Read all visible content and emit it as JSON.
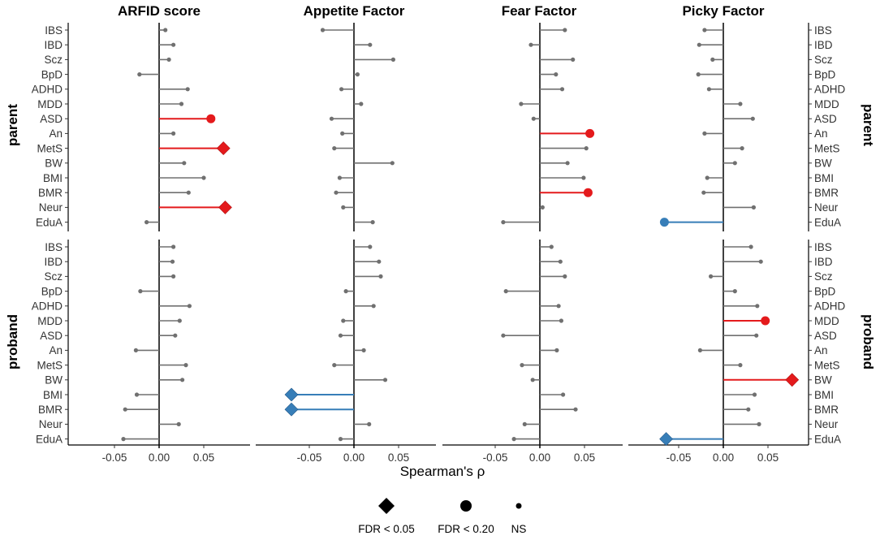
{
  "chart_data": {
    "type": "lollipop",
    "xlabel": "Spearman's ρ",
    "xlim": [
      -0.095,
      0.09
    ],
    "xticks": [
      -0.05,
      0.0,
      0.05
    ],
    "xtick_labels": [
      "-0.05",
      "0.00",
      "0.05"
    ],
    "facets": [
      "ARFID score",
      "Appetite Factor",
      "Fear Factor",
      "Picky Factor"
    ],
    "rows": [
      "parent",
      "proband"
    ],
    "traits": [
      "IBS",
      "IBD",
      "Scz",
      "BpD",
      "ADHD",
      "MDD",
      "ASD",
      "An",
      "MetS",
      "BW",
      "BMI",
      "BMR",
      "Neur",
      "EduA"
    ],
    "colors": {
      "positive": "#e41a1c",
      "negative": "#377eb8",
      "ns": "#707070"
    },
    "legend": {
      "items": [
        {
          "label": "FDR < 0.05",
          "shape": "diamond"
        },
        {
          "label": "FDR < 0.20",
          "shape": "circle"
        },
        {
          "label": "NS",
          "shape": "dot"
        }
      ]
    },
    "panels": [
      {
        "row": "parent",
        "facet": "ARFID score",
        "values": [
          0.007,
          0.016,
          0.011,
          -0.022,
          0.032,
          0.025,
          0.058,
          0.016,
          0.072,
          0.028,
          0.05,
          0.033,
          0.074,
          -0.014
        ],
        "sig": [
          "ns",
          "ns",
          "ns",
          "ns",
          "ns",
          "ns",
          "fdr20",
          "ns",
          "fdr05",
          "ns",
          "ns",
          "ns",
          "fdr05",
          "ns"
        ]
      },
      {
        "row": "parent",
        "facet": "Appetite Factor",
        "values": [
          -0.035,
          0.018,
          0.044,
          0.004,
          -0.014,
          0.008,
          -0.025,
          -0.013,
          -0.022,
          0.043,
          -0.016,
          -0.02,
          -0.012,
          0.021
        ],
        "sig": [
          "ns",
          "ns",
          "ns",
          "ns",
          "ns",
          "ns",
          "ns",
          "ns",
          "ns",
          "ns",
          "ns",
          "ns",
          "ns",
          "ns"
        ]
      },
      {
        "row": "parent",
        "facet": "Fear Factor",
        "values": [
          0.028,
          -0.01,
          0.037,
          0.018,
          0.025,
          -0.021,
          -0.007,
          0.056,
          0.052,
          0.031,
          0.049,
          0.054,
          0.003,
          -0.041
        ],
        "sig": [
          "ns",
          "ns",
          "ns",
          "ns",
          "ns",
          "ns",
          "ns",
          "fdr20",
          "ns",
          "ns",
          "ns",
          "fdr20",
          "ns",
          "ns"
        ]
      },
      {
        "row": "parent",
        "facet": "Picky Factor",
        "values": [
          -0.021,
          -0.027,
          -0.012,
          -0.028,
          -0.016,
          0.019,
          0.033,
          -0.021,
          0.021,
          0.013,
          -0.018,
          -0.022,
          0.034,
          -0.066
        ],
        "sig": [
          "ns",
          "ns",
          "ns",
          "ns",
          "ns",
          "ns",
          "ns",
          "ns",
          "ns",
          "ns",
          "ns",
          "ns",
          "ns",
          "fdr20"
        ]
      },
      {
        "row": "proband",
        "facet": "ARFID score",
        "values": [
          0.016,
          0.015,
          0.016,
          -0.021,
          0.034,
          0.023,
          0.018,
          -0.026,
          0.03,
          0.026,
          -0.025,
          -0.038,
          0.022,
          -0.04
        ],
        "sig": [
          "ns",
          "ns",
          "ns",
          "ns",
          "ns",
          "ns",
          "ns",
          "ns",
          "ns",
          "ns",
          "ns",
          "ns",
          "ns",
          "ns"
        ]
      },
      {
        "row": "proband",
        "facet": "Appetite Factor",
        "values": [
          0.018,
          0.028,
          0.03,
          -0.009,
          0.022,
          -0.012,
          -0.015,
          0.011,
          -0.022,
          0.035,
          -0.07,
          -0.07,
          0.017,
          -0.015
        ],
        "sig": [
          "ns",
          "ns",
          "ns",
          "ns",
          "ns",
          "ns",
          "ns",
          "ns",
          "ns",
          "ns",
          "fdr05",
          "fdr05",
          "ns",
          "ns"
        ]
      },
      {
        "row": "proband",
        "facet": "Fear Factor",
        "values": [
          0.013,
          0.023,
          0.028,
          -0.038,
          0.021,
          0.024,
          -0.041,
          0.019,
          -0.02,
          -0.008,
          0.026,
          0.04,
          -0.017,
          -0.029
        ],
        "sig": [
          "ns",
          "ns",
          "ns",
          "ns",
          "ns",
          "ns",
          "ns",
          "ns",
          "ns",
          "ns",
          "ns",
          "ns",
          "ns",
          "ns"
        ]
      },
      {
        "row": "proband",
        "facet": "Picky Factor",
        "values": [
          0.031,
          0.042,
          -0.014,
          0.013,
          0.038,
          0.047,
          0.037,
          -0.026,
          0.019,
          0.077,
          0.035,
          0.028,
          0.04,
          -0.064
        ],
        "sig": [
          "ns",
          "ns",
          "ns",
          "ns",
          "ns",
          "fdr20",
          "ns",
          "ns",
          "ns",
          "fdr05",
          "ns",
          "ns",
          "ns",
          "fdr05"
        ]
      }
    ]
  }
}
